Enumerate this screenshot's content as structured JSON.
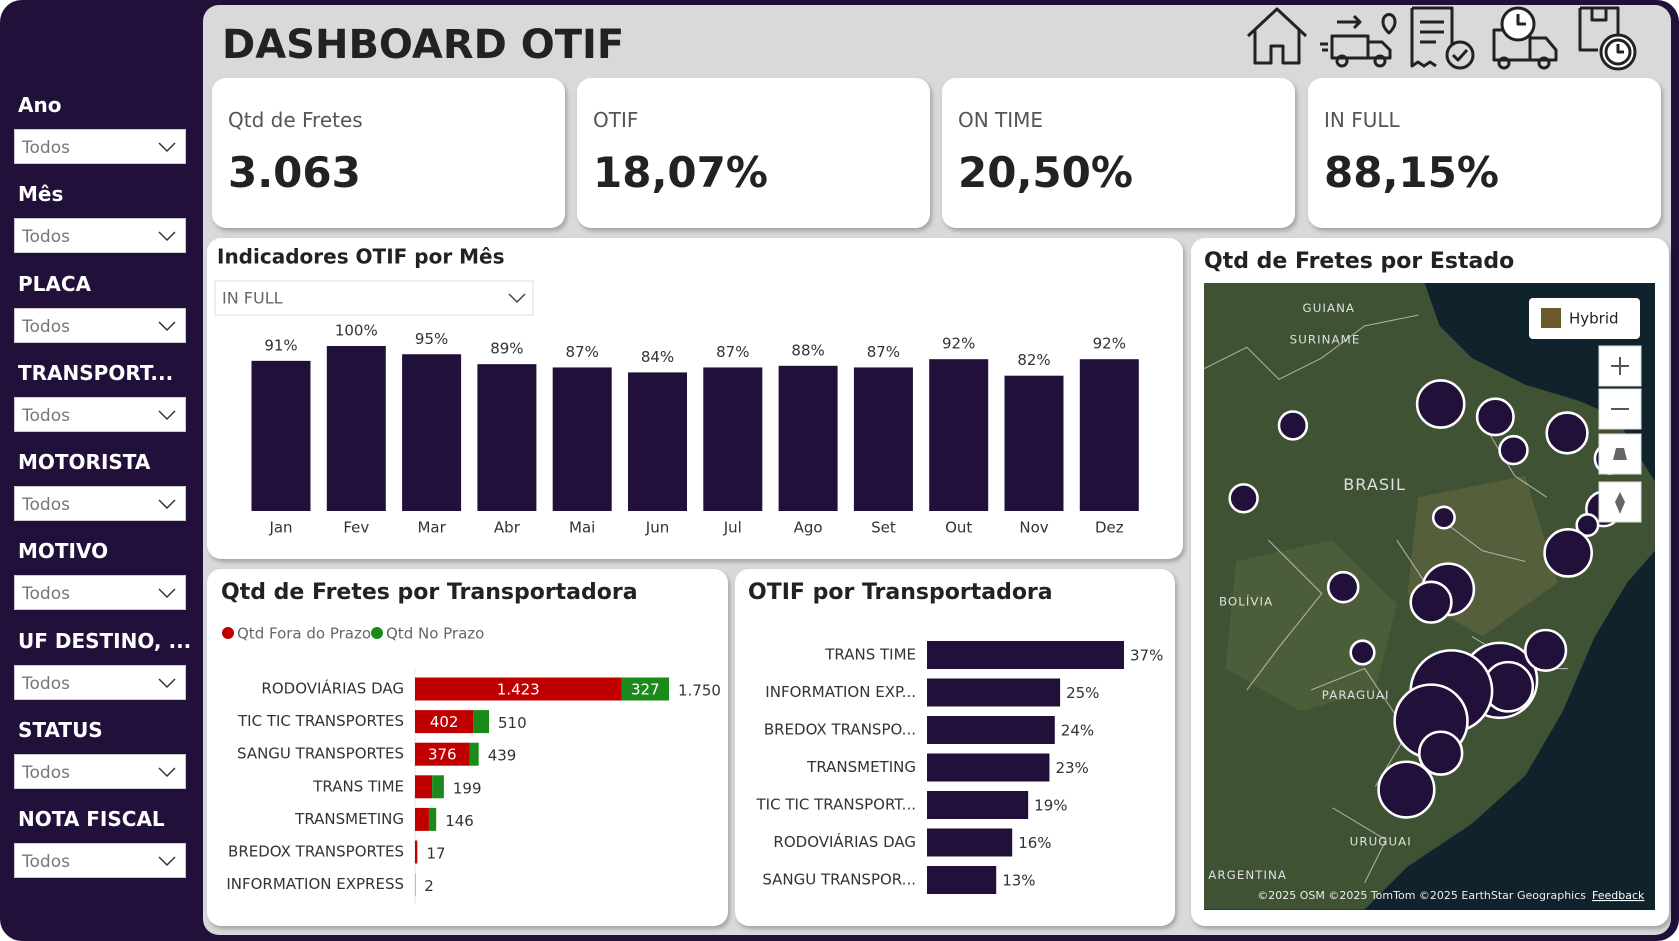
{
  "header": {
    "title": "DASHBOARD OTIF"
  },
  "filters": [
    {
      "label": "Ano",
      "value": "Todos"
    },
    {
      "label": "Mês",
      "value": "Todos"
    },
    {
      "label": "PLACA",
      "value": "Todos"
    },
    {
      "label": "TRANSPORT...",
      "value": "Todos"
    },
    {
      "label": "MOTORISTA",
      "value": "Todos"
    },
    {
      "label": "MOTIVO",
      "value": "Todos"
    },
    {
      "label": "UF DESTINO, ...",
      "value": "Todos"
    },
    {
      "label": "STATUS",
      "value": "Todos"
    },
    {
      "label": "NOTA FISCAL",
      "value": "Todos"
    }
  ],
  "kpis": [
    {
      "label": "Qtd de Fretes",
      "value": "3.063"
    },
    {
      "label": "OTIF",
      "value": "18,07%"
    },
    {
      "label": "ON TIME",
      "value": "20,50%"
    },
    {
      "label": "IN FULL",
      "value": "88,15%"
    }
  ],
  "monthly_chart": {
    "type": "bar",
    "title": "Indicadores OTIF por Mês",
    "selector": "IN FULL",
    "categories": [
      "Jan",
      "Fev",
      "Mar",
      "Abr",
      "Mai",
      "Jun",
      "Jul",
      "Ago",
      "Set",
      "Out",
      "Nov",
      "Dez"
    ],
    "values": [
      91,
      100,
      95,
      89,
      87,
      84,
      87,
      88,
      87,
      92,
      82,
      92
    ],
    "value_labels": [
      "91%",
      "100%",
      "95%",
      "89%",
      "87%",
      "84%",
      "87%",
      "88%",
      "87%",
      "92%",
      "82%",
      "92%"
    ],
    "color": "#20103a"
  },
  "carrier_volume_chart": {
    "type": "stacked-barh",
    "title": "Qtd de Fretes por Transportadora",
    "categories": [
      "RODOVIÁRIAS DAG",
      "TIC TIC TRANSPORTES",
      "SANGU TRANSPORTES",
      "TRANS TIME",
      "TRANSMETING",
      "BREDOX TRANSPORTES",
      "INFORMATION EXPRESS"
    ],
    "series": [
      {
        "name": "Qtd Fora do Prazo",
        "color": "#c00000",
        "values": [
          1423,
          402,
          376,
          118,
          96,
          15,
          2
        ],
        "value_labels": [
          "1.423",
          "402",
          "376",
          null,
          null,
          null,
          null
        ]
      },
      {
        "name": "Qtd No Prazo",
        "color": "#1a8a1a",
        "values": [
          327,
          108,
          63,
          81,
          50,
          2,
          0
        ],
        "value_labels": [
          "327",
          null,
          null,
          null,
          null,
          null,
          null
        ]
      }
    ],
    "totals": [
      {
        "value": 1750,
        "label": "1.750"
      },
      510,
      439,
      199,
      146,
      17,
      2
    ]
  },
  "carrier_otif_chart": {
    "type": "barh",
    "title": "OTIF por Transportadora",
    "categories": [
      "TRANS TIME",
      "INFORMATION EXP...",
      "BREDOX TRANSPO...",
      "TRANSMETING",
      "TIC TIC TRANSPORT...",
      "RODOVIÁRIAS DAG",
      "SANGU TRANSPOR..."
    ],
    "values": [
      37,
      25,
      24,
      23,
      19,
      16,
      13
    ],
    "value_labels": [
      "37%",
      "25%",
      "24%",
      "23%",
      "19%",
      "16%",
      "13%"
    ],
    "color": "#20103a"
  },
  "map": {
    "title": "Qtd de Fretes por Estado",
    "style_button": "Hybrid",
    "labels": [
      "GUIANA",
      "SURINAME",
      "BRASIL",
      "BOLÍVIA",
      "PARAGUAI",
      "URUGUAI",
      "ARGENTINA"
    ],
    "attribution": "©2025 OSM ©2025 TomTom ©2025 EarthStar Geographics",
    "feedback": "Feedback"
  }
}
